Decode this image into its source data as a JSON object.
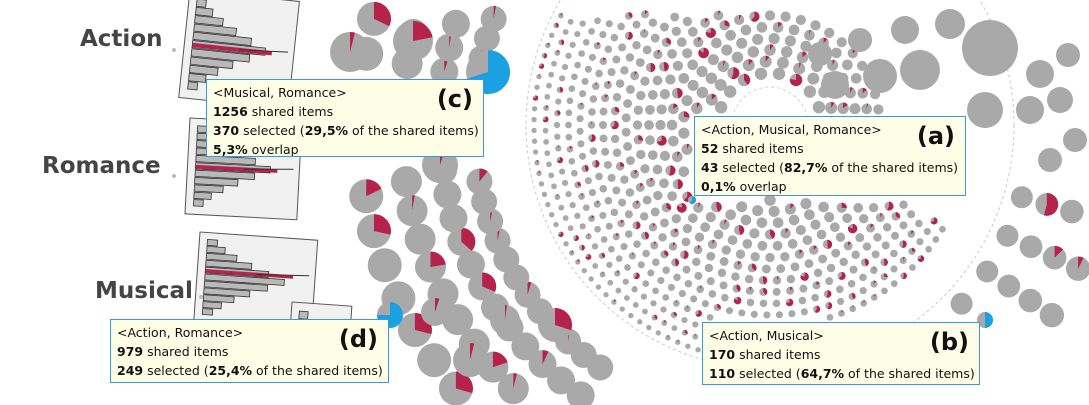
{
  "set_labels": [
    {
      "name": "Action"
    },
    {
      "name": "Romance"
    },
    {
      "name": "Musical"
    }
  ],
  "tooltips": [
    {
      "id": "c",
      "tag": "(c)",
      "title": "<Musical, Romance>",
      "shared_count": "1256",
      "shared_text": " shared items",
      "selected_count": "370",
      "selected_text": " selected (",
      "selected_pct": "29,5%",
      "selected_rest": " of the shared items)",
      "overlap_pct": "5,3%",
      "overlap_text": " overlap"
    },
    {
      "id": "a",
      "tag": "(a)",
      "title": "<Action, Musical, Romance>",
      "shared_count": "52",
      "shared_text": " shared items",
      "selected_count": "43",
      "selected_text": " selected (",
      "selected_pct": "82,7%",
      "selected_rest": " of the shared items)",
      "overlap_pct": "0,1%",
      "overlap_text": " overlap"
    },
    {
      "id": "d",
      "tag": "(d)",
      "title": "<Action, Romance>",
      "shared_count": "979",
      "shared_text": " shared items",
      "selected_count": "249",
      "selected_text": " selected (",
      "selected_pct": "25,4%",
      "selected_rest": " of the shared items)"
    },
    {
      "id": "b",
      "tag": "(b)",
      "title": "<Action, Musical>",
      "shared_count": "170",
      "shared_text": " shared items",
      "selected_count": "110",
      "selected_text": " selected (",
      "selected_pct": "64,7%",
      "selected_rest": " of the shared items)"
    }
  ],
  "colors": {
    "node_gray": "#a9a9a9",
    "selection_red": "#b5234d",
    "highlight_blue": "#1ba1e2",
    "tooltip_bg": "#fefee6",
    "tooltip_border": "#3a9ad9",
    "histogram_fill": "#b9b9b9"
  }
}
